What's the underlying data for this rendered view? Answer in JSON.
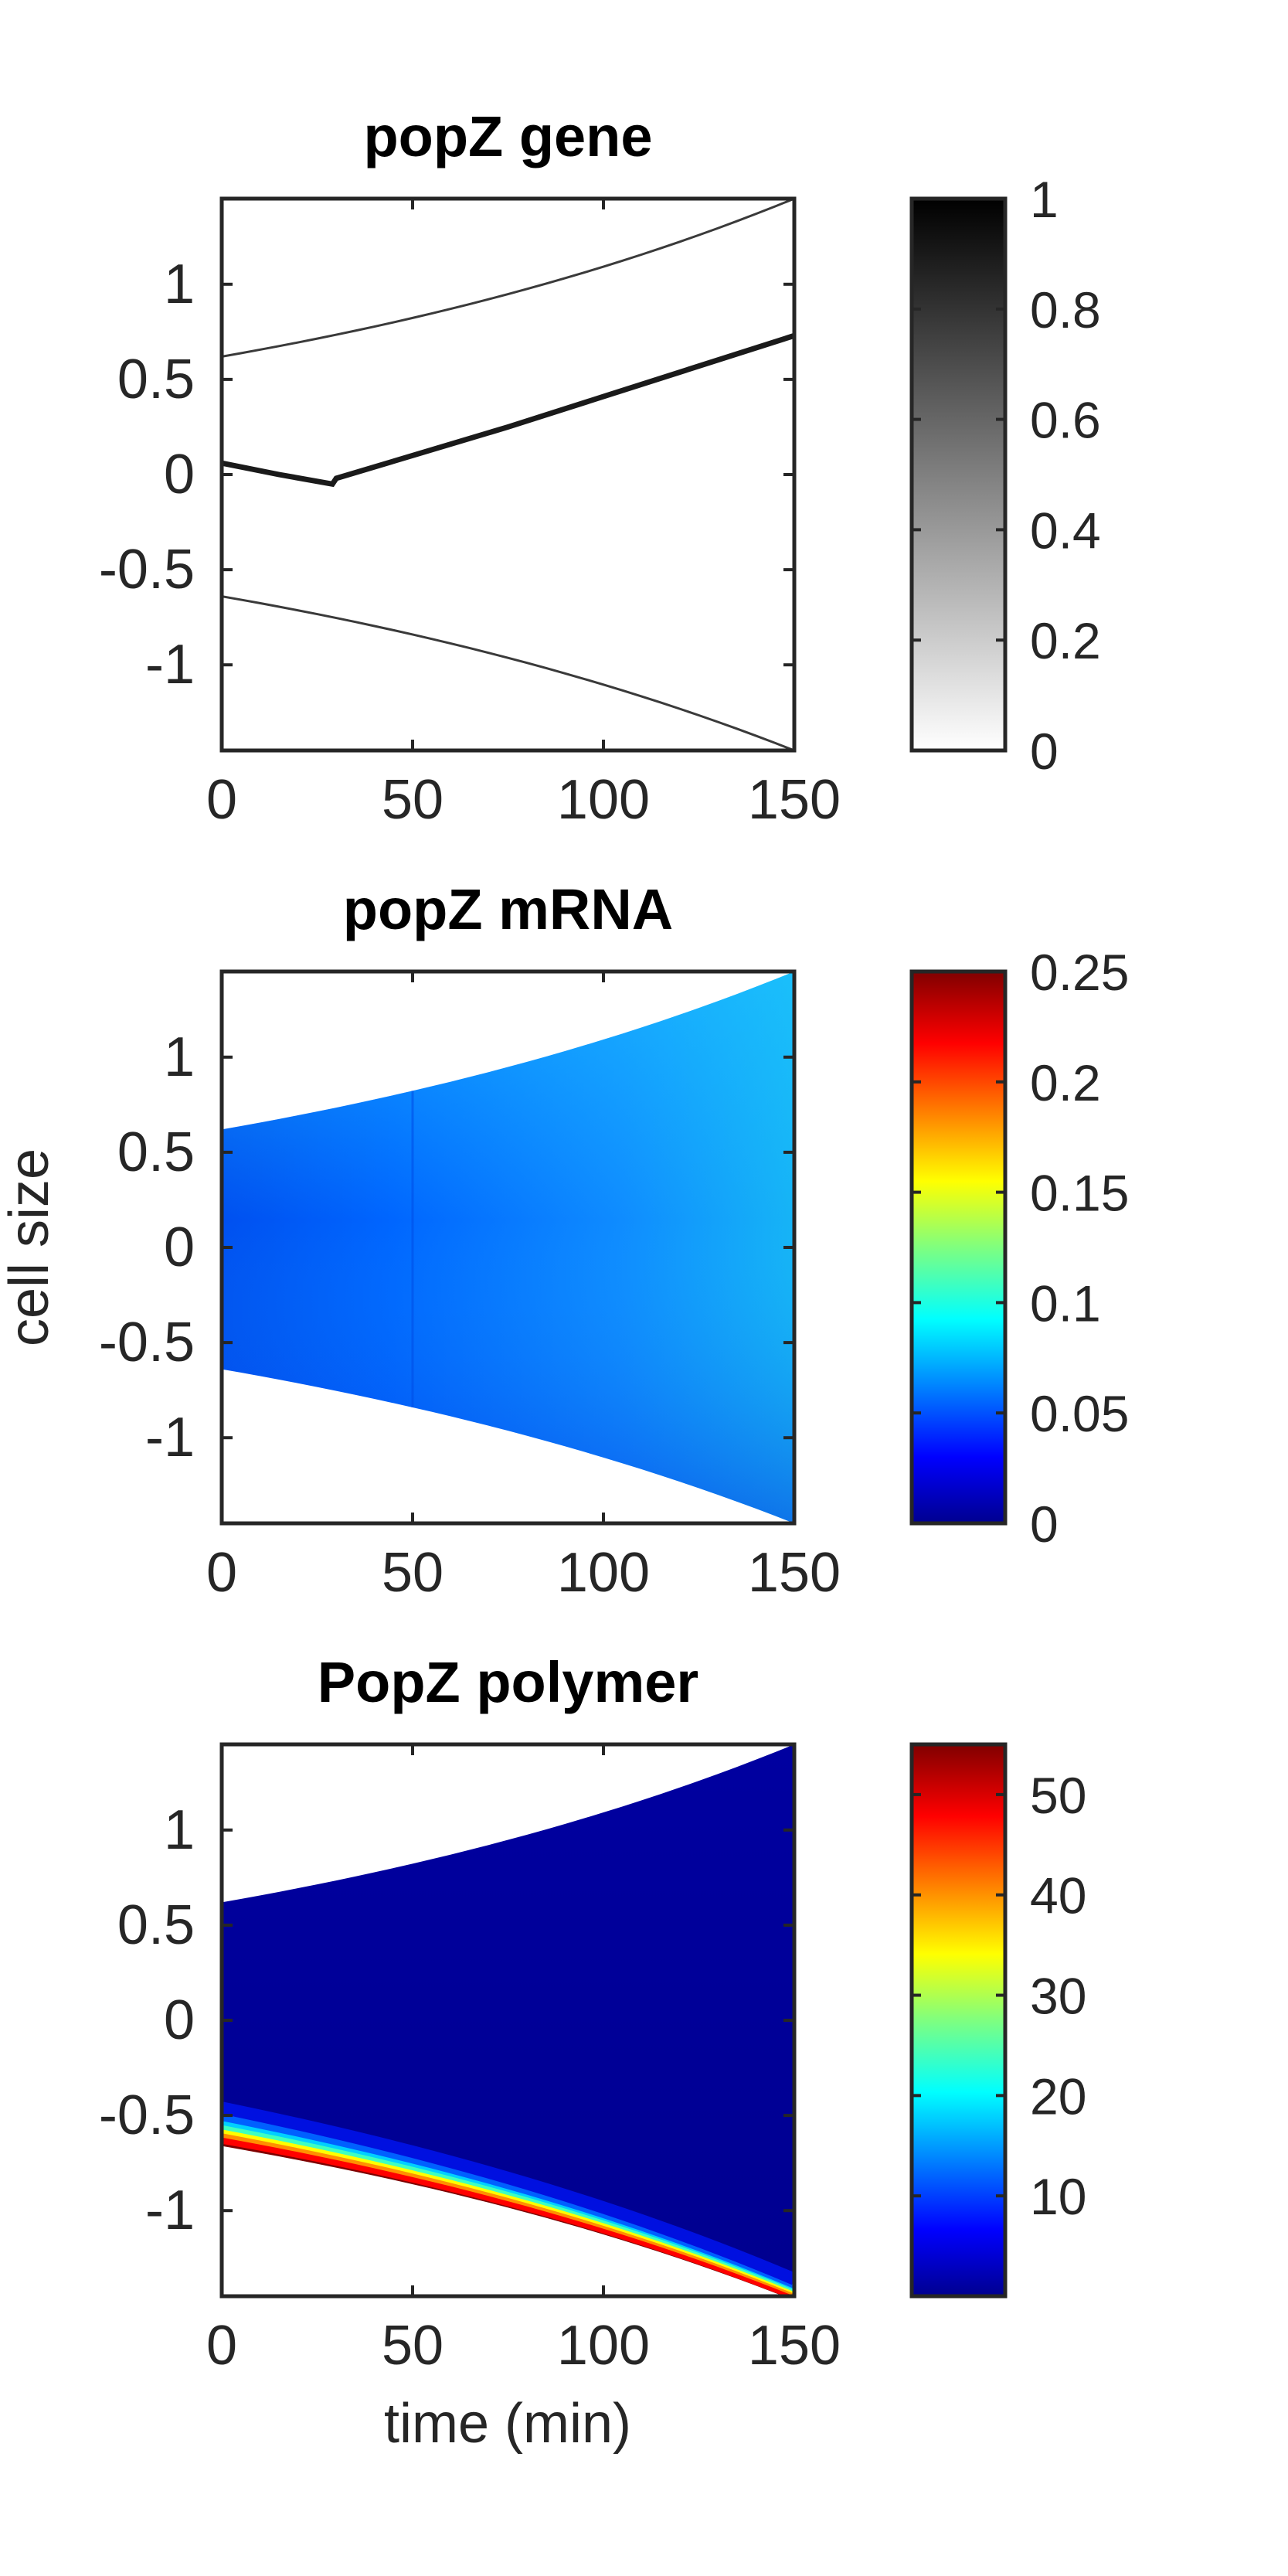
{
  "figure": {
    "ylabel": "cell size",
    "xlabel": "time (min)"
  },
  "chart_data": [
    {
      "type": "heatmap",
      "title": "popZ gene",
      "xlim": [
        0,
        150
      ],
      "ylim": [
        -1.45,
        1.45
      ],
      "x_ticks": [
        "0",
        "50",
        "100",
        "150"
      ],
      "y_ticks": [
        "1",
        "0.5",
        "0",
        "-0.5",
        "-1"
      ],
      "colormap": "gray (white to black)",
      "colorbar": {
        "range": [
          0,
          1
        ],
        "ticks": [
          "1",
          "0.8",
          "0.6",
          "0.4",
          "0.2",
          "0"
        ]
      },
      "grid": false,
      "series": [
        {
          "x": [
            0,
            30,
            75,
            150
          ],
          "values": [
            0.62,
            0.81,
            1.03,
            1.45
          ]
        },
        {
          "x": [
            0,
            30,
            75,
            150
          ],
          "values": [
            -0.64,
            -0.82,
            -1.04,
            -1.45
          ]
        },
        {
          "x": [
            0,
            15,
            29,
            30,
            75,
            150
          ],
          "values": [
            0.06,
            0.0,
            -0.05,
            -0.02,
            0.25,
            0.73
          ]
        }
      ]
    },
    {
      "type": "heatmap",
      "title": "popZ mRNA",
      "xlim": [
        0,
        150
      ],
      "ylim": [
        -1.45,
        1.45
      ],
      "x_ticks": [
        "0",
        "50",
        "100",
        "150"
      ],
      "y_ticks": [
        "1",
        "0.5",
        "0",
        "-0.5",
        "-1"
      ],
      "colormap": "jet",
      "colorbar": {
        "range": [
          0,
          0.25
        ],
        "ticks": [
          "0.25",
          "0.2",
          "0.15",
          "0.1",
          "0.05",
          "0"
        ]
      },
      "grid": false
    },
    {
      "type": "heatmap",
      "title": "PopZ polymer",
      "xlim": [
        0,
        150
      ],
      "ylim": [
        -1.45,
        1.45
      ],
      "x_ticks": [
        "0",
        "50",
        "100",
        "150"
      ],
      "y_ticks": [
        "1",
        "0.5",
        "0",
        "-0.5",
        "-1"
      ],
      "colormap": "jet",
      "colorbar": {
        "range": [
          0,
          55
        ],
        "ticks": [
          "50",
          "40",
          "30",
          "20",
          "10"
        ]
      },
      "grid": false
    }
  ]
}
